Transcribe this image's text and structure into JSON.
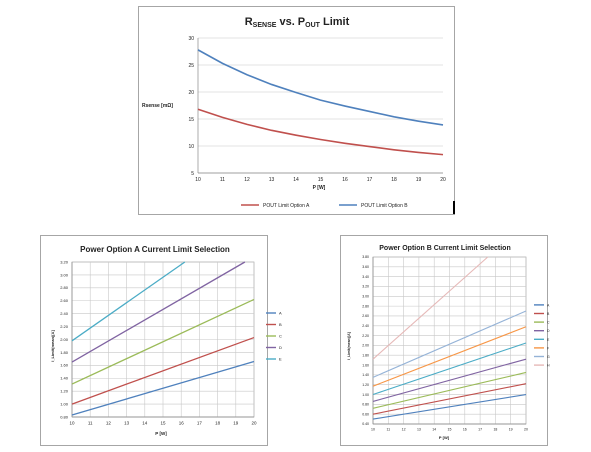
{
  "chart_data": [
    {
      "type": "line",
      "title_main": "R",
      "title_sub1": "SENSE",
      "title_mid": " vs. P",
      "title_sub2": "OUT",
      "title_end": " Limit",
      "xlabel": "P [W]",
      "ylabel": "Rsense [mΩ]",
      "xlim": [
        10,
        20
      ],
      "ylim": [
        5,
        30
      ],
      "x_ticks": [
        "10",
        "11",
        "12",
        "13",
        "14",
        "15",
        "16",
        "17",
        "18",
        "19",
        "20"
      ],
      "y_ticks": [
        "5",
        "10",
        "15",
        "20",
        "25",
        "30"
      ],
      "grid": "horizontal",
      "legend": "bottom",
      "x": [
        10,
        11,
        12,
        13,
        14,
        15,
        16,
        17,
        18,
        19,
        20
      ],
      "series": [
        {
          "name": "POUT Limit Option A",
          "color": "#c0504d",
          "values": [
            16.8,
            15.3,
            14.0,
            12.9,
            12.0,
            11.2,
            10.5,
            9.9,
            9.3,
            8.8,
            8.4
          ]
        },
        {
          "name": "POUT Limit Option B",
          "color": "#4f81bd",
          "values": [
            27.8,
            25.3,
            23.2,
            21.4,
            19.9,
            18.5,
            17.4,
            16.4,
            15.4,
            14.6,
            13.9
          ]
        }
      ]
    },
    {
      "type": "line",
      "title": "Power Option A Current Limit Selection",
      "xlabel": "P [W]",
      "ylabel": "I_Limit(mean)[A]",
      "xlim": [
        10,
        20
      ],
      "ylim": [
        0.8,
        3.2
      ],
      "x_ticks": [
        "10",
        "11",
        "12",
        "13",
        "14",
        "15",
        "16",
        "17",
        "18",
        "19",
        "20"
      ],
      "y_ticks": [
        "0.80",
        "1.00",
        "1.20",
        "1.40",
        "1.60",
        "1.80",
        "2.00",
        "2.20",
        "2.40",
        "2.60",
        "2.80",
        "3.00",
        "3.20"
      ],
      "grid": "both",
      "legend": "right",
      "series": [
        {
          "name": "A",
          "color": "#4f81bd",
          "x": [
            10,
            20
          ],
          "values": [
            0.83,
            1.66
          ]
        },
        {
          "name": "B",
          "color": "#c0504d",
          "x": [
            10,
            20
          ],
          "values": [
            1.0,
            2.03
          ]
        },
        {
          "name": "C",
          "color": "#9bbb59",
          "x": [
            10,
            20
          ],
          "values": [
            1.31,
            2.62
          ]
        },
        {
          "name": "D",
          "color": "#8064a2",
          "x": [
            10,
            19.5
          ],
          "values": [
            1.65,
            3.2
          ]
        },
        {
          "name": "E",
          "color": "#4bacc6",
          "x": [
            10,
            16.2
          ],
          "values": [
            1.98,
            3.2
          ]
        }
      ]
    },
    {
      "type": "line",
      "title": "Power Option B Current Limit Selection",
      "xlabel": "P [W]",
      "ylabel": "I_Limit(mean)[A]",
      "xlim": [
        10,
        20
      ],
      "ylim": [
        0.4,
        3.8
      ],
      "x_ticks": [
        "10",
        "11",
        "12",
        "13",
        "14",
        "15",
        "16",
        "17",
        "18",
        "19",
        "20"
      ],
      "y_ticks": [
        "0.40",
        "0.60",
        "0.80",
        "1.00",
        "1.20",
        "1.40",
        "1.60",
        "1.80",
        "2.00",
        "2.20",
        "2.40",
        "2.60",
        "2.80",
        "3.00",
        "3.20",
        "3.40",
        "3.60",
        "3.80"
      ],
      "grid": "both",
      "legend": "right",
      "series": [
        {
          "name": "A",
          "color": "#4f81bd",
          "x": [
            10,
            20
          ],
          "values": [
            0.5,
            1.0
          ]
        },
        {
          "name": "B",
          "color": "#c0504d",
          "x": [
            10,
            20
          ],
          "values": [
            0.6,
            1.22
          ]
        },
        {
          "name": "C",
          "color": "#9bbb59",
          "x": [
            10,
            20
          ],
          "values": [
            0.72,
            1.45
          ]
        },
        {
          "name": "D",
          "color": "#8064a2",
          "x": [
            10,
            20
          ],
          "values": [
            0.86,
            1.72
          ]
        },
        {
          "name": "E",
          "color": "#4bacc6",
          "x": [
            10,
            20
          ],
          "values": [
            1.0,
            2.05
          ]
        },
        {
          "name": "F",
          "color": "#f79646",
          "x": [
            10,
            20
          ],
          "values": [
            1.17,
            2.38
          ]
        },
        {
          "name": "G",
          "color": "#95b3d7",
          "x": [
            10,
            20
          ],
          "values": [
            1.35,
            2.7
          ]
        },
        {
          "name": "H",
          "color": "#e6b9b8",
          "x": [
            10,
            17.5
          ],
          "values": [
            1.72,
            3.8
          ]
        }
      ]
    }
  ]
}
